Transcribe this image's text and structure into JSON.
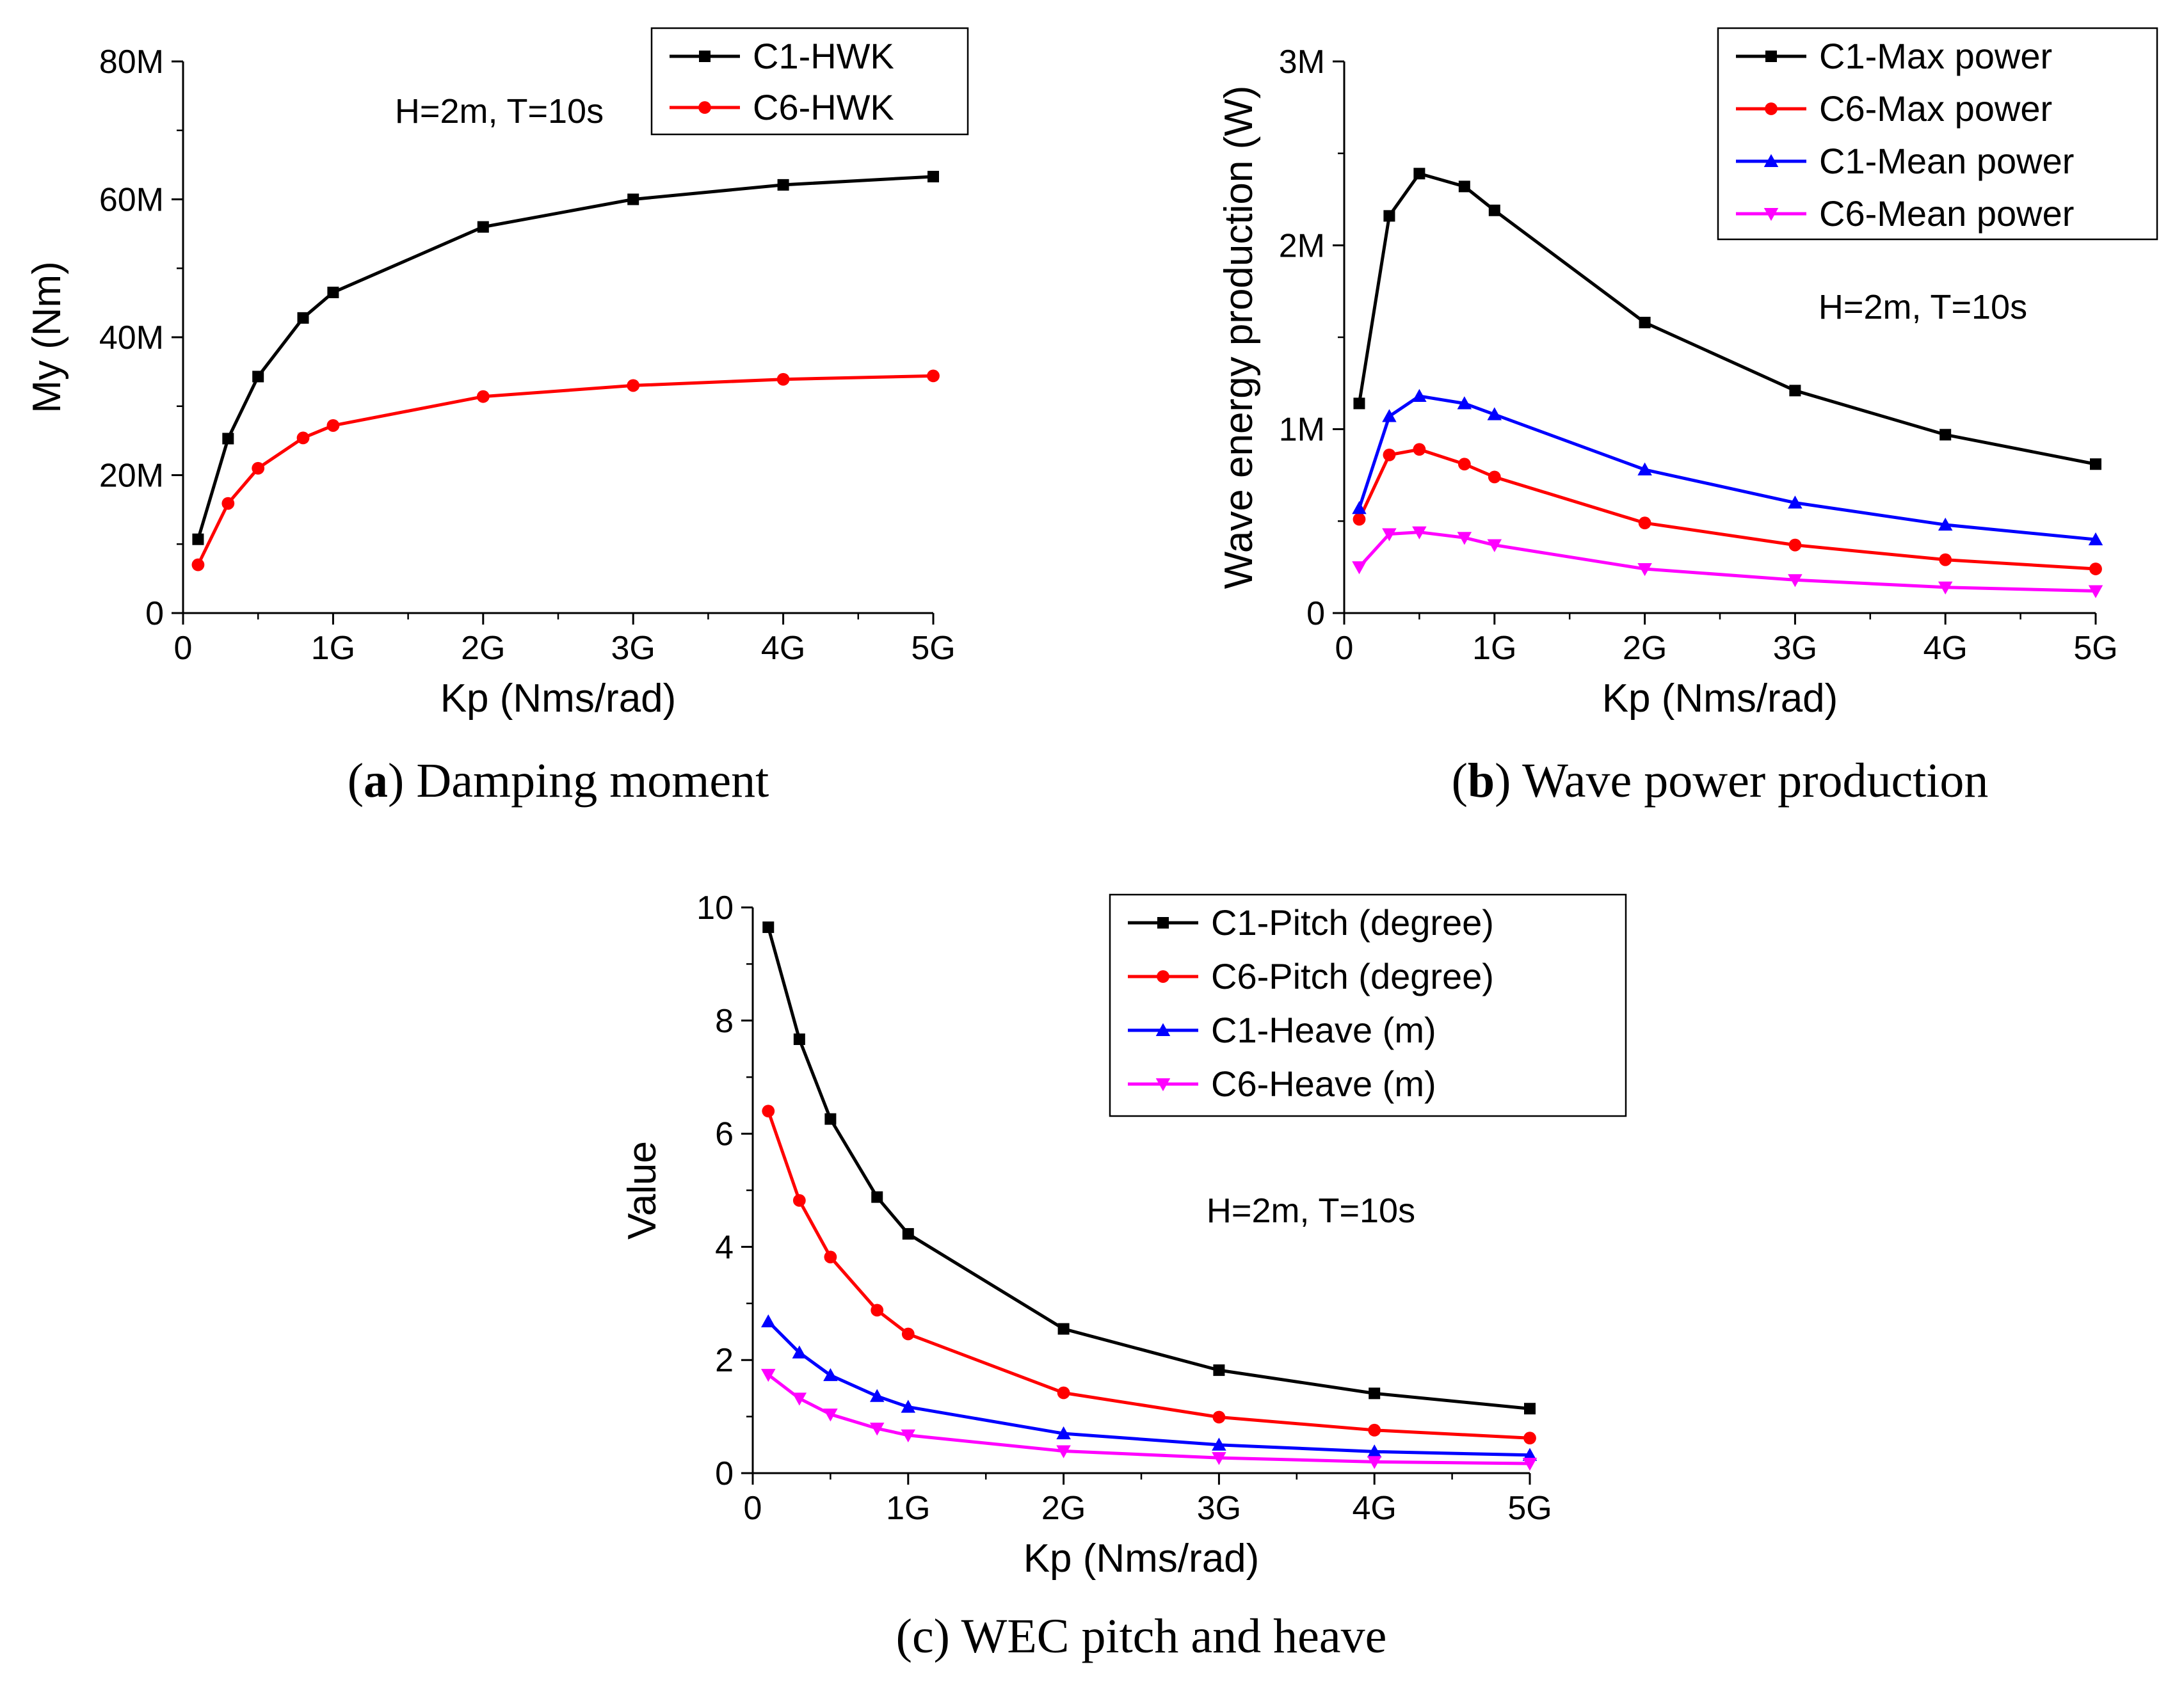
{
  "chart_data": [
    {
      "id": "a",
      "type": "line",
      "caption_letter": "a",
      "caption_text": " Damping moment",
      "annotation": "H=2m, T=10s",
      "xlabel": "Kp (Nms/rad)",
      "ylabel": "My (Nm)",
      "xlim": [
        0,
        5
      ],
      "ylim": [
        0,
        80
      ],
      "xticks": [
        0,
        1,
        2,
        3,
        4,
        5
      ],
      "xtick_labels": [
        "0",
        "1G",
        "2G",
        "3G",
        "4G",
        "5G"
      ],
      "yticks": [
        0,
        20,
        40,
        60,
        80
      ],
      "ytick_labels": [
        "0",
        "20M",
        "40M",
        "60M",
        "80M"
      ],
      "x": [
        0.1,
        0.3,
        0.5,
        0.8,
        1.0,
        2.0,
        3.0,
        4.0,
        5.0
      ],
      "legend_position": "top-right",
      "series": [
        {
          "name": "C1-HWK",
          "color": "#000000",
          "marker": "square",
          "values": [
            10.7,
            25.3,
            34.3,
            42.8,
            46.5,
            56.0,
            60.0,
            62.1,
            63.3
          ]
        },
        {
          "name": "C6-HWK",
          "color": "#ff0000",
          "marker": "circle",
          "values": [
            7.0,
            15.9,
            21.0,
            25.4,
            27.2,
            31.4,
            33.0,
            33.9,
            34.4
          ]
        }
      ]
    },
    {
      "id": "b",
      "type": "line",
      "caption_letter": "b",
      "caption_text": " Wave power production",
      "annotation": "H=2m, T=10s",
      "xlabel": "Kp (Nms/rad)",
      "ylabel": "Wave energy production (W)",
      "xlim": [
        0,
        5
      ],
      "ylim": [
        0,
        3
      ],
      "xticks": [
        0,
        1,
        2,
        3,
        4,
        5
      ],
      "xtick_labels": [
        "0",
        "1G",
        "2G",
        "3G",
        "4G",
        "5G"
      ],
      "yticks": [
        0,
        1,
        2,
        3
      ],
      "ytick_labels": [
        "0",
        "1M",
        "2M",
        "3M"
      ],
      "x": [
        0.1,
        0.3,
        0.5,
        0.8,
        1.0,
        2.0,
        3.0,
        4.0,
        5.0
      ],
      "legend_position": "top-right",
      "series": [
        {
          "name": "C1-Max power",
          "color": "#000000",
          "marker": "square",
          "values": [
            1.14,
            2.16,
            2.39,
            2.32,
            2.19,
            1.58,
            1.21,
            0.97,
            0.81
          ]
        },
        {
          "name": "C6-Max power",
          "color": "#ff0000",
          "marker": "circle",
          "values": [
            0.51,
            0.86,
            0.89,
            0.81,
            0.74,
            0.49,
            0.37,
            0.29,
            0.24
          ]
        },
        {
          "name": "C1-Mean power",
          "color": "#0000ff",
          "marker": "triangle-up",
          "values": [
            0.57,
            1.07,
            1.18,
            1.14,
            1.08,
            0.78,
            0.6,
            0.48,
            0.4
          ]
        },
        {
          "name": "C6-Mean power",
          "color": "#ff00ff",
          "marker": "triangle-down",
          "values": [
            0.25,
            0.43,
            0.44,
            0.41,
            0.37,
            0.24,
            0.18,
            0.14,
            0.12
          ]
        }
      ]
    },
    {
      "id": "c",
      "type": "line",
      "caption_letter": "c",
      "caption_text": " WEC pitch and heave",
      "annotation": "H=2m, T=10s",
      "xlabel": "Kp (Nms/rad)",
      "ylabel": "Value",
      "xlim": [
        0,
        5
      ],
      "ylim": [
        0,
        10
      ],
      "xticks": [
        0,
        1,
        2,
        3,
        4,
        5
      ],
      "xtick_labels": [
        "0",
        "1G",
        "2G",
        "3G",
        "4G",
        "5G"
      ],
      "yticks": [
        0,
        2,
        4,
        6,
        8,
        10
      ],
      "ytick_labels": [
        "0",
        "2",
        "4",
        "6",
        "8",
        "10"
      ],
      "x": [
        0.1,
        0.3,
        0.5,
        0.8,
        1.0,
        2.0,
        3.0,
        4.0,
        5.0
      ],
      "legend_position": "top-right",
      "series": [
        {
          "name": "C1-Pitch (degree)",
          "color": "#000000",
          "marker": "square",
          "values": [
            9.65,
            7.67,
            6.26,
            4.88,
            4.23,
            2.55,
            1.82,
            1.41,
            1.14
          ]
        },
        {
          "name": "C6-Pitch (degree)",
          "color": "#ff0000",
          "marker": "circle",
          "values": [
            6.4,
            4.82,
            3.82,
            2.88,
            2.46,
            1.42,
            0.99,
            0.76,
            0.62
          ]
        },
        {
          "name": "C1-Heave (m)",
          "color": "#0000ff",
          "marker": "triangle-up",
          "values": [
            2.68,
            2.13,
            1.73,
            1.36,
            1.17,
            0.7,
            0.5,
            0.38,
            0.32
          ]
        },
        {
          "name": "C6-Heave (m)",
          "color": "#ff00ff",
          "marker": "triangle-down",
          "values": [
            1.74,
            1.32,
            1.04,
            0.79,
            0.67,
            0.39,
            0.27,
            0.2,
            0.17
          ]
        }
      ]
    }
  ]
}
